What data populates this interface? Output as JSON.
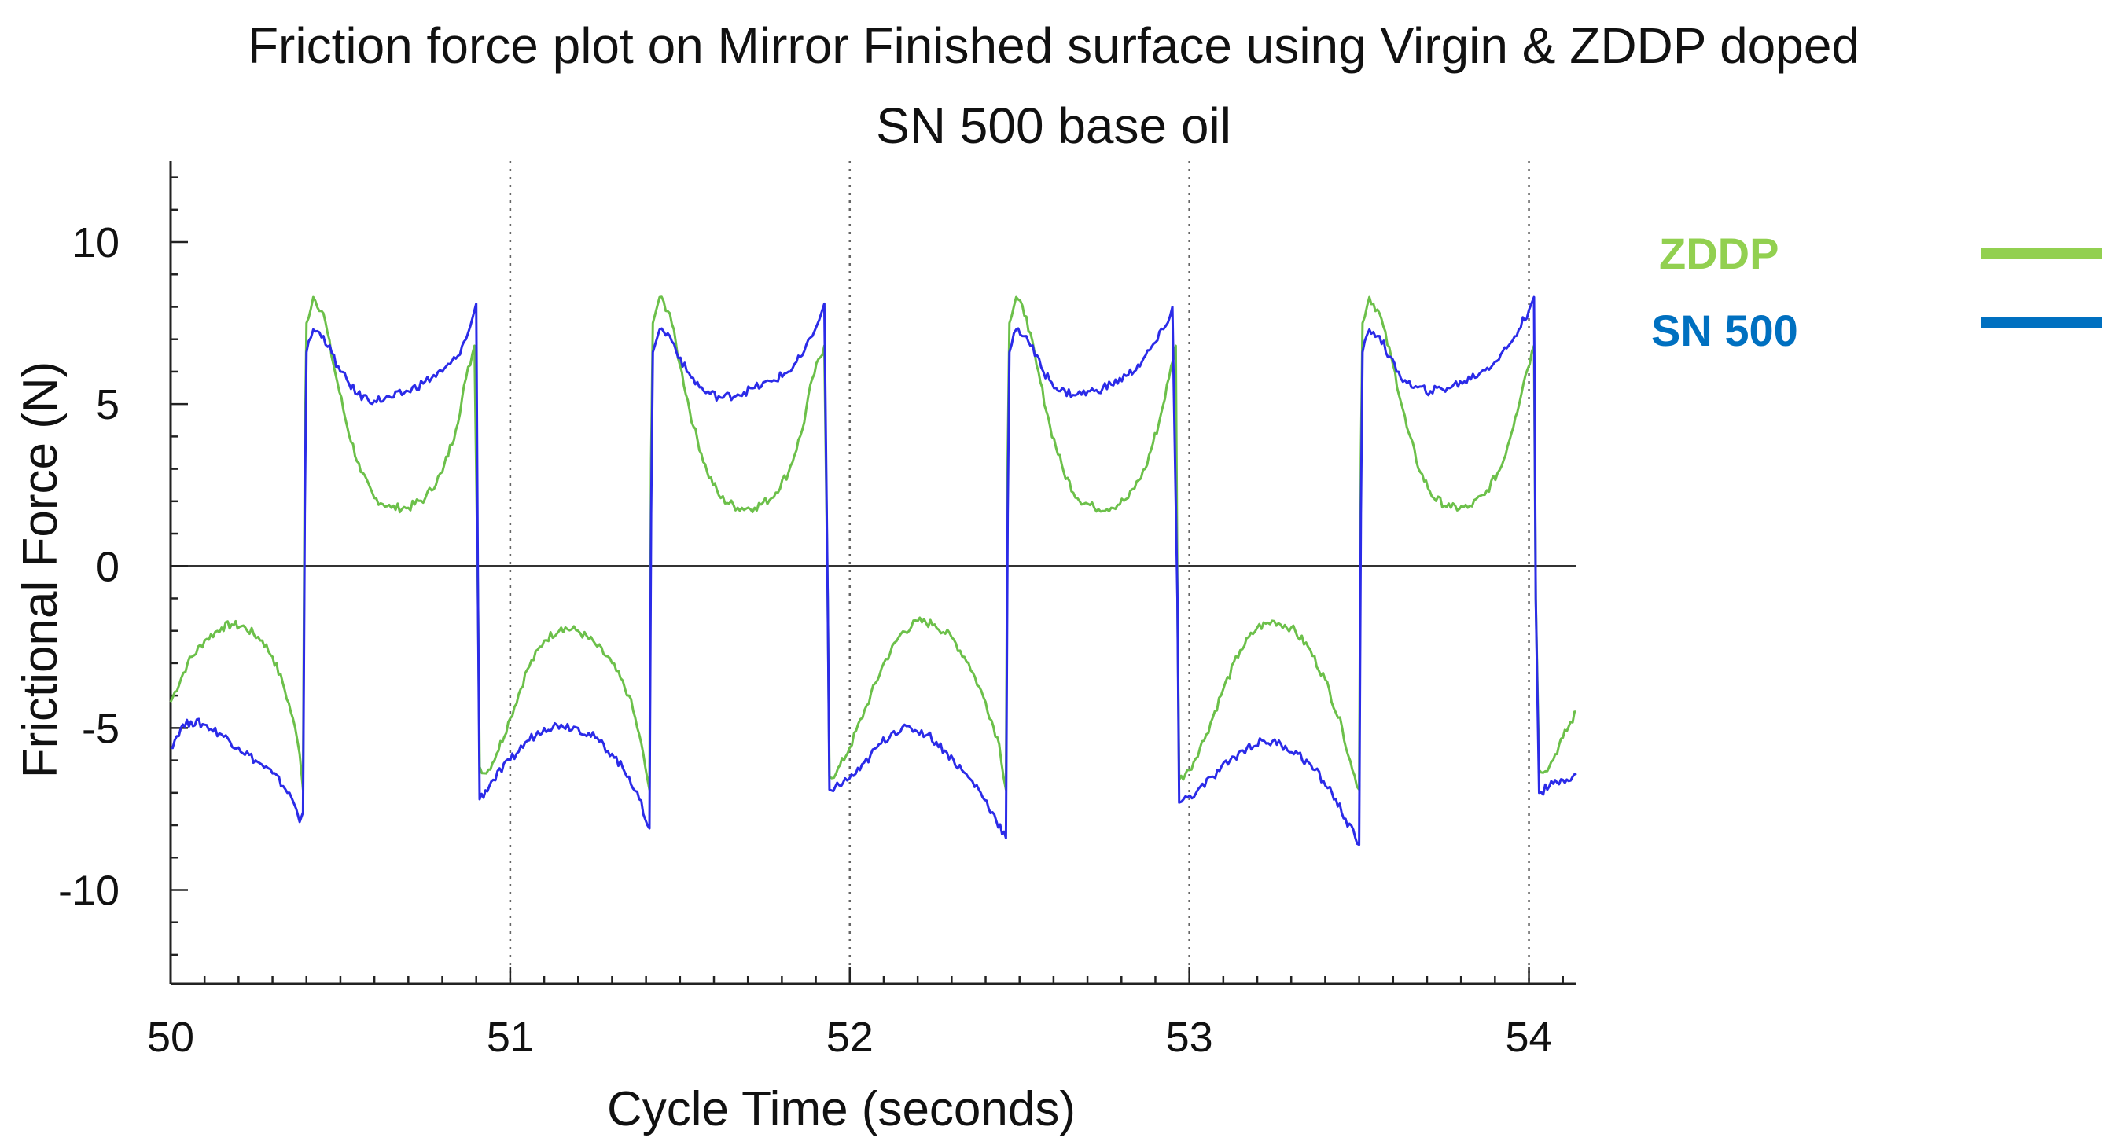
{
  "chart_data": {
    "type": "line",
    "title_lines": [
      "Friction force plot on Mirror Finished surface using Virgin & ZDDP doped",
      "SN 500 base oil"
    ],
    "xlabel": "Cycle Time (seconds)",
    "ylabel": "Frictional Force (N)",
    "xlim": [
      50,
      54.14
    ],
    "ylim": [
      -12.9,
      12.5
    ],
    "x_ticks": [
      50,
      51,
      52,
      53,
      54
    ],
    "x_tick_labels": [
      "50",
      "51",
      "52",
      "53",
      "54"
    ],
    "y_ticks": [
      10,
      5,
      0,
      -5,
      -10
    ],
    "y_tick_labels": [
      "10",
      "5",
      "0",
      "-5",
      "-10"
    ],
    "x_minor_step": 0.1,
    "y_minor_step": 1,
    "vertical_gridlines_at": [
      51,
      52,
      53,
      54
    ],
    "zero_line": true,
    "legend_position": "top-right, outside plot",
    "series": [
      {
        "name": "ZDDP",
        "color": "#6CC04A",
        "legend_color": "#92D050",
        "points": [
          [
            50.0,
            -4.2
          ],
          [
            50.05,
            -3.0
          ],
          [
            50.1,
            -2.3
          ],
          [
            50.15,
            -1.9
          ],
          [
            50.18,
            -1.8
          ],
          [
            50.22,
            -1.9
          ],
          [
            50.27,
            -2.3
          ],
          [
            50.3,
            -2.8
          ],
          [
            50.33,
            -3.6
          ],
          [
            50.36,
            -4.7
          ],
          [
            50.38,
            -5.8
          ],
          [
            50.39,
            -6.9
          ],
          [
            50.395,
            3.3
          ],
          [
            50.4,
            7.5
          ],
          [
            50.42,
            8.3
          ],
          [
            50.45,
            7.8
          ],
          [
            50.48,
            6.2
          ],
          [
            50.52,
            4.3
          ],
          [
            50.56,
            2.9
          ],
          [
            50.6,
            2.1
          ],
          [
            50.65,
            1.8
          ],
          [
            50.7,
            1.8
          ],
          [
            50.75,
            2.1
          ],
          [
            50.8,
            2.9
          ],
          [
            50.84,
            4.2
          ],
          [
            50.87,
            5.8
          ],
          [
            50.895,
            6.8
          ],
          [
            50.905,
            -1.0
          ],
          [
            50.91,
            -6.2
          ],
          [
            50.93,
            -6.4
          ],
          [
            50.96,
            -5.8
          ],
          [
            51.0,
            -4.7
          ],
          [
            51.05,
            -3.2
          ],
          [
            51.1,
            -2.3
          ],
          [
            51.15,
            -1.9
          ],
          [
            51.2,
            -2.0
          ],
          [
            51.25,
            -2.4
          ],
          [
            51.3,
            -3.0
          ],
          [
            51.35,
            -4.0
          ],
          [
            51.38,
            -5.2
          ],
          [
            51.41,
            -6.9
          ],
          [
            51.415,
            3.3
          ],
          [
            51.42,
            7.5
          ],
          [
            51.44,
            8.3
          ],
          [
            51.47,
            7.8
          ],
          [
            51.5,
            6.2
          ],
          [
            51.54,
            4.3
          ],
          [
            51.58,
            2.9
          ],
          [
            51.62,
            2.1
          ],
          [
            51.67,
            1.8
          ],
          [
            51.72,
            1.8
          ],
          [
            51.77,
            2.1
          ],
          [
            51.82,
            2.9
          ],
          [
            51.86,
            4.2
          ],
          [
            51.89,
            5.8
          ],
          [
            51.925,
            6.8
          ],
          [
            51.935,
            -1.0
          ],
          [
            51.94,
            -6.5
          ],
          [
            51.96,
            -6.4
          ],
          [
            52.0,
            -5.6
          ],
          [
            52.05,
            -4.3
          ],
          [
            52.1,
            -3.0
          ],
          [
            52.15,
            -2.1
          ],
          [
            52.2,
            -1.7
          ],
          [
            52.25,
            -1.8
          ],
          [
            52.3,
            -2.2
          ],
          [
            52.35,
            -3.0
          ],
          [
            52.4,
            -4.2
          ],
          [
            52.44,
            -5.5
          ],
          [
            52.46,
            -6.9
          ],
          [
            52.465,
            3.3
          ],
          [
            52.47,
            7.5
          ],
          [
            52.49,
            8.3
          ],
          [
            52.52,
            7.7
          ],
          [
            52.55,
            6.2
          ],
          [
            52.59,
            4.3
          ],
          [
            52.63,
            2.9
          ],
          [
            52.67,
            2.1
          ],
          [
            52.72,
            1.8
          ],
          [
            52.77,
            1.8
          ],
          [
            52.82,
            2.1
          ],
          [
            52.87,
            3.0
          ],
          [
            52.91,
            4.4
          ],
          [
            52.94,
            5.8
          ],
          [
            52.96,
            6.8
          ],
          [
            52.965,
            -1.0
          ],
          [
            52.97,
            -6.6
          ],
          [
            53.0,
            -6.3
          ],
          [
            53.05,
            -5.2
          ],
          [
            53.1,
            -3.8
          ],
          [
            53.15,
            -2.6
          ],
          [
            53.2,
            -1.9
          ],
          [
            53.25,
            -1.7
          ],
          [
            53.3,
            -1.9
          ],
          [
            53.35,
            -2.5
          ],
          [
            53.4,
            -3.5
          ],
          [
            53.45,
            -5.0
          ],
          [
            53.48,
            -6.3
          ],
          [
            53.5,
            -6.9
          ],
          [
            53.505,
            3.3
          ],
          [
            53.51,
            7.5
          ],
          [
            53.53,
            8.3
          ],
          [
            53.56,
            7.8
          ],
          [
            53.6,
            6.2
          ],
          [
            53.64,
            4.3
          ],
          [
            53.68,
            2.9
          ],
          [
            53.72,
            2.1
          ],
          [
            53.77,
            1.8
          ],
          [
            53.82,
            1.8
          ],
          [
            53.87,
            2.2
          ],
          [
            53.92,
            3.1
          ],
          [
            53.96,
            4.6
          ],
          [
            53.99,
            5.9
          ],
          [
            54.015,
            6.8
          ],
          [
            54.02,
            -1.0
          ],
          [
            54.03,
            -6.3
          ],
          [
            54.06,
            -6.2
          ],
          [
            54.1,
            -5.3
          ],
          [
            54.14,
            -4.5
          ]
        ]
      },
      {
        "name": "SN 500",
        "color": "#2B2BE8",
        "legend_color": "#0070C0",
        "points": [
          [
            50.0,
            -5.6
          ],
          [
            50.03,
            -5.0
          ],
          [
            50.06,
            -4.8
          ],
          [
            50.1,
            -4.9
          ],
          [
            50.15,
            -5.2
          ],
          [
            50.2,
            -5.6
          ],
          [
            50.25,
            -6.0
          ],
          [
            50.3,
            -6.4
          ],
          [
            50.35,
            -7.0
          ],
          [
            50.37,
            -7.5
          ],
          [
            50.38,
            -7.9
          ],
          [
            50.39,
            -7.6
          ],
          [
            50.395,
            1.6
          ],
          [
            50.4,
            6.6
          ],
          [
            50.42,
            7.3
          ],
          [
            50.45,
            7.1
          ],
          [
            50.5,
            6.0
          ],
          [
            50.55,
            5.3
          ],
          [
            50.6,
            5.1
          ],
          [
            50.65,
            5.2
          ],
          [
            50.7,
            5.4
          ],
          [
            50.75,
            5.7
          ],
          [
            50.8,
            6.0
          ],
          [
            50.84,
            6.4
          ],
          [
            50.87,
            7.0
          ],
          [
            50.89,
            7.7
          ],
          [
            50.9,
            8.1
          ],
          [
            50.905,
            -1.0
          ],
          [
            50.91,
            -7.2
          ],
          [
            50.95,
            -6.6
          ],
          [
            51.0,
            -6.0
          ],
          [
            51.05,
            -5.4
          ],
          [
            51.1,
            -5.0
          ],
          [
            51.15,
            -4.9
          ],
          [
            51.2,
            -5.0
          ],
          [
            51.25,
            -5.3
          ],
          [
            51.3,
            -5.8
          ],
          [
            51.35,
            -6.5
          ],
          [
            51.38,
            -7.2
          ],
          [
            51.41,
            -8.1
          ],
          [
            51.415,
            1.6
          ],
          [
            51.42,
            6.6
          ],
          [
            51.44,
            7.3
          ],
          [
            51.47,
            7.1
          ],
          [
            51.52,
            6.0
          ],
          [
            51.57,
            5.4
          ],
          [
            51.62,
            5.2
          ],
          [
            51.67,
            5.3
          ],
          [
            51.72,
            5.5
          ],
          [
            51.77,
            5.7
          ],
          [
            51.82,
            6.0
          ],
          [
            51.86,
            6.5
          ],
          [
            51.89,
            7.1
          ],
          [
            51.91,
            7.6
          ],
          [
            51.925,
            8.1
          ],
          [
            51.935,
            -1.0
          ],
          [
            51.94,
            -6.9
          ],
          [
            51.98,
            -6.7
          ],
          [
            52.03,
            -6.3
          ],
          [
            52.08,
            -5.6
          ],
          [
            52.13,
            -5.1
          ],
          [
            52.18,
            -5.0
          ],
          [
            52.23,
            -5.2
          ],
          [
            52.28,
            -5.7
          ],
          [
            52.33,
            -6.3
          ],
          [
            52.38,
            -6.9
          ],
          [
            52.42,
            -7.6
          ],
          [
            52.46,
            -8.4
          ],
          [
            52.465,
            1.6
          ],
          [
            52.47,
            6.6
          ],
          [
            52.49,
            7.3
          ],
          [
            52.52,
            7.1
          ],
          [
            52.57,
            6.0
          ],
          [
            52.62,
            5.4
          ],
          [
            52.67,
            5.3
          ],
          [
            52.72,
            5.4
          ],
          [
            52.77,
            5.6
          ],
          [
            52.82,
            5.9
          ],
          [
            52.86,
            6.3
          ],
          [
            52.9,
            6.9
          ],
          [
            52.93,
            7.4
          ],
          [
            52.95,
            8.0
          ],
          [
            52.965,
            -1.0
          ],
          [
            52.97,
            -7.3
          ],
          [
            53.02,
            -7.0
          ],
          [
            53.07,
            -6.5
          ],
          [
            53.12,
            -6.0
          ],
          [
            53.17,
            -5.6
          ],
          [
            53.22,
            -5.4
          ],
          [
            53.27,
            -5.5
          ],
          [
            53.32,
            -5.8
          ],
          [
            53.37,
            -6.3
          ],
          [
            53.42,
            -7.0
          ],
          [
            53.46,
            -7.8
          ],
          [
            53.5,
            -8.6
          ],
          [
            53.505,
            1.6
          ],
          [
            53.51,
            6.6
          ],
          [
            53.53,
            7.3
          ],
          [
            53.56,
            7.1
          ],
          [
            53.61,
            6.0
          ],
          [
            53.66,
            5.5
          ],
          [
            53.71,
            5.4
          ],
          [
            53.76,
            5.5
          ],
          [
            53.81,
            5.7
          ],
          [
            53.86,
            6.0
          ],
          [
            53.9,
            6.3
          ],
          [
            53.94,
            6.8
          ],
          [
            53.97,
            7.3
          ],
          [
            54.0,
            7.9
          ],
          [
            54.015,
            8.3
          ],
          [
            54.02,
            -1.0
          ],
          [
            54.03,
            -7.0
          ],
          [
            54.06,
            -6.8
          ],
          [
            54.1,
            -6.6
          ],
          [
            54.14,
            -6.4
          ]
        ]
      }
    ]
  }
}
